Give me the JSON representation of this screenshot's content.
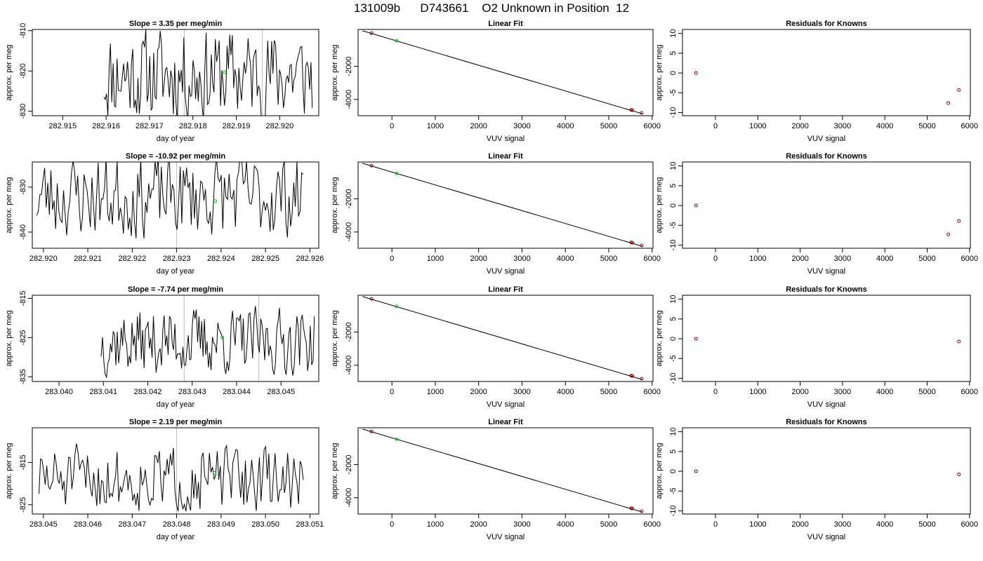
{
  "page_title": "131009b      D743661    O2 Unknown in Position  12",
  "chart_data": [
    {
      "type": "line",
      "panel": "trace-1",
      "title": "Slope =  3.35  per meg/min",
      "xlabel": "day of year",
      "ylabel": "approx. per meg",
      "xlim": [
        282.9143,
        282.9209
      ],
      "ylim": [
        -831.1,
        -809.7
      ],
      "xticks": [
        "282.915",
        "282.916",
        "282.917",
        "282.918",
        "282.919",
        "282.920"
      ],
      "xtick_values": [
        282.915,
        282.916,
        282.917,
        282.918,
        282.919,
        282.92
      ],
      "yticks": [
        "-810",
        "-820",
        "-830"
      ],
      "ytick_values": [
        -810,
        -820,
        -830
      ],
      "trace_x_range": [
        282.91595,
        282.92075
      ],
      "trace_center": -821,
      "trace_amplitude": 15,
      "trace_points": 160,
      "trace_seed": 11,
      "vlines": [
        282.9178,
        282.9196
      ],
      "highlight_point": {
        "x": 282.91873,
        "y": -820.3
      }
    },
    {
      "type": "line",
      "panel": "trace-2",
      "title": "Slope =  -10.92  per meg/min",
      "xlabel": "day of year",
      "ylabel": "approx. per meg",
      "xlim": [
        282.91975,
        282.9262
      ],
      "ylim": [
        -843.6,
        -824.4
      ],
      "xticks": [
        "282.920",
        "282.921",
        "282.922",
        "282.923",
        "282.924",
        "282.925",
        "282.926"
      ],
      "xtick_values": [
        282.92,
        282.921,
        282.922,
        282.923,
        282.924,
        282.925,
        282.926
      ],
      "yticks": [
        "-830",
        "-840"
      ],
      "ytick_values": [
        -830,
        -840
      ],
      "trace_x_range": [
        282.91985,
        282.92585
      ],
      "trace_center": -832,
      "trace_amplitude": 12,
      "trace_points": 170,
      "trace_seed": 23,
      "vlines": [
        282.923
      ],
      "highlight_point": {
        "x": 282.92387,
        "y": -833.1
      }
    },
    {
      "type": "line",
      "panel": "trace-3",
      "title": "Slope =  -7.74  per meg/min",
      "xlabel": "day of year",
      "ylabel": "approx. per meg",
      "xlim": [
        283.0394,
        283.04585
      ],
      "ylim": [
        -836.2,
        -814.2
      ],
      "xticks": [
        "283.040",
        "283.041",
        "283.042",
        "283.043",
        "283.044",
        "283.045"
      ],
      "xtick_values": [
        283.04,
        283.041,
        283.042,
        283.043,
        283.044,
        283.045
      ],
      "yticks": [
        "-815",
        "-825",
        "-835"
      ],
      "ytick_values": [
        -815,
        -825,
        -835
      ],
      "trace_x_range": [
        283.04095,
        283.04575
      ],
      "trace_center": -826,
      "trace_amplitude": 11,
      "trace_points": 160,
      "trace_seed": 37,
      "vlines": [
        283.04282,
        283.0445
      ],
      "highlight_point": {
        "x": 283.04368,
        "y": -825.0
      }
    },
    {
      "type": "line",
      "panel": "trace-4",
      "title": "Slope =  2.19  per meg/min",
      "xlabel": "day of year",
      "ylabel": "approx. per meg",
      "xlim": [
        283.04475,
        283.0512
      ],
      "ylim": [
        -827.2,
        -806.8
      ],
      "xticks": [
        "283.045",
        "283.046",
        "283.047",
        "283.048",
        "283.049",
        "283.050",
        "283.051"
      ],
      "xtick_values": [
        283.045,
        283.046,
        283.047,
        283.048,
        283.049,
        283.05,
        283.051
      ],
      "yticks": [
        "-815",
        "-825"
      ],
      "ytick_values": [
        -815,
        -825
      ],
      "trace_x_range": [
        283.0449,
        283.05085
      ],
      "trace_center": -819,
      "trace_amplitude": 10,
      "trace_points": 170,
      "trace_seed": 51,
      "vlines": [
        283.048
      ],
      "highlight_point": {
        "x": 283.04885,
        "y": -817.5
      }
    },
    {
      "type": "scatter",
      "panel": "fit-1",
      "title": "Linear Fit",
      "xlabel": "VUV signal",
      "ylabel": "approx. per meg",
      "xlim": [
        -780,
        6020
      ],
      "ylim": [
        -4980,
        220
      ],
      "xticks": [
        "0",
        "1000",
        "2000",
        "3000",
        "4000",
        "5000",
        "6000"
      ],
      "xtick_values": [
        0,
        1000,
        2000,
        3000,
        4000,
        5000,
        6000
      ],
      "yticks": [
        "-2000",
        "-4000"
      ],
      "ytick_values": [
        -2000,
        -4000
      ],
      "fit_line": {
        "x": [
          -680,
          5770
        ],
        "y": [
          140,
          -4860
        ]
      },
      "knowns": [
        {
          "x": -470,
          "y": -2
        },
        {
          "x": 5520,
          "y": -4630
        },
        {
          "x": 5540,
          "y": -4645
        },
        {
          "x": 5760,
          "y": -4810
        }
      ],
      "unknowns": [
        {
          "x": 110,
          "y": -457
        }
      ]
    },
    {
      "type": "scatter",
      "panel": "fit-2",
      "title": "Linear Fit",
      "xlabel": "VUV signal",
      "ylabel": "approx. per meg",
      "xlim": [
        -780,
        6020
      ],
      "ylim": [
        -4980,
        220
      ],
      "xticks": [
        "0",
        "1000",
        "2000",
        "3000",
        "4000",
        "5000",
        "6000"
      ],
      "xtick_values": [
        0,
        1000,
        2000,
        3000,
        4000,
        5000,
        6000
      ],
      "yticks": [
        "-2000",
        "-4000"
      ],
      "ytick_values": [
        -2000,
        -4000
      ],
      "fit_line": {
        "x": [
          -680,
          5770
        ],
        "y": [
          140,
          -4860
        ]
      },
      "knowns": [
        {
          "x": -470,
          "y": -2
        },
        {
          "x": 5520,
          "y": -4630
        },
        {
          "x": 5540,
          "y": -4645
        },
        {
          "x": 5760,
          "y": -4810
        }
      ],
      "unknowns": [
        {
          "x": 110,
          "y": -469
        }
      ]
    },
    {
      "type": "scatter",
      "panel": "fit-3",
      "title": "Linear Fit",
      "xlabel": "VUV signal",
      "ylabel": "approx. per meg",
      "xlim": [
        -780,
        6020
      ],
      "ylim": [
        -4980,
        220
      ],
      "xticks": [
        "0",
        "1000",
        "2000",
        "3000",
        "4000",
        "5000",
        "6000"
      ],
      "xtick_values": [
        0,
        1000,
        2000,
        3000,
        4000,
        5000,
        6000
      ],
      "yticks": [
        "-2000",
        "-4000"
      ],
      "ytick_values": [
        -2000,
        -4000
      ],
      "fit_line": {
        "x": [
          -680,
          5770
        ],
        "y": [
          140,
          -4860
        ]
      },
      "knowns": [
        {
          "x": -470,
          "y": -2
        },
        {
          "x": 5520,
          "y": -4630
        },
        {
          "x": 5540,
          "y": -4645
        },
        {
          "x": 5760,
          "y": -4810
        }
      ],
      "unknowns": [
        {
          "x": 110,
          "y": -453
        }
      ]
    },
    {
      "type": "scatter",
      "panel": "fit-4",
      "title": "Linear Fit",
      "xlabel": "VUV signal",
      "ylabel": "approx. per meg",
      "xlim": [
        -780,
        6020
      ],
      "ylim": [
        -4980,
        220
      ],
      "xticks": [
        "0",
        "1000",
        "2000",
        "3000",
        "4000",
        "5000",
        "6000"
      ],
      "xtick_values": [
        0,
        1000,
        2000,
        3000,
        4000,
        5000,
        6000
      ],
      "yticks": [
        "-2000",
        "-4000"
      ],
      "ytick_values": [
        -2000,
        -4000
      ],
      "fit_line": {
        "x": [
          -680,
          5770
        ],
        "y": [
          140,
          -4860
        ]
      },
      "knowns": [
        {
          "x": -470,
          "y": -2
        },
        {
          "x": 5520,
          "y": -4630
        },
        {
          "x": 5540,
          "y": -4645
        },
        {
          "x": 5760,
          "y": -4810
        }
      ],
      "unknowns": [
        {
          "x": 110,
          "y": -472
        }
      ]
    },
    {
      "type": "scatter",
      "panel": "resid-1",
      "title": "Residuals for Knowns",
      "xlabel": "VUV signal",
      "ylabel": "approx. per meg",
      "xlim": [
        -780,
        6020
      ],
      "ylim": [
        -10.8,
        11
      ],
      "xticks": [
        "0",
        "1000",
        "2000",
        "3000",
        "4000",
        "5000",
        "6000"
      ],
      "xtick_values": [
        0,
        1000,
        2000,
        3000,
        4000,
        5000,
        6000
      ],
      "yticks": [
        "10",
        "5",
        "0",
        "-5",
        "-10"
      ],
      "ytick_values": [
        10,
        5,
        0,
        -5,
        -10
      ],
      "points": [
        {
          "x": -460,
          "y": 0
        },
        {
          "x": 5500,
          "y": -7.6
        },
        {
          "x": 5750,
          "y": -4.3
        }
      ]
    },
    {
      "type": "scatter",
      "panel": "resid-2",
      "title": "Residuals for Knowns",
      "xlabel": "VUV signal",
      "ylabel": "approx. per meg",
      "xlim": [
        -780,
        6020
      ],
      "ylim": [
        -10.8,
        11
      ],
      "xticks": [
        "0",
        "1000",
        "2000",
        "3000",
        "4000",
        "5000",
        "6000"
      ],
      "xtick_values": [
        0,
        1000,
        2000,
        3000,
        4000,
        5000,
        6000
      ],
      "yticks": [
        "10",
        "5",
        "0",
        "-5",
        "-10"
      ],
      "ytick_values": [
        10,
        5,
        0,
        -5,
        -10
      ],
      "points": [
        {
          "x": -460,
          "y": 0
        },
        {
          "x": 5500,
          "y": -7.3
        },
        {
          "x": 5750,
          "y": -3.9
        }
      ]
    },
    {
      "type": "scatter",
      "panel": "resid-3",
      "title": "Residuals for Knowns",
      "xlabel": "VUV signal",
      "ylabel": "approx. per meg",
      "xlim": [
        -780,
        6020
      ],
      "ylim": [
        -10.8,
        11
      ],
      "xticks": [
        "0",
        "1000",
        "2000",
        "3000",
        "4000",
        "5000",
        "6000"
      ],
      "xtick_values": [
        0,
        1000,
        2000,
        3000,
        4000,
        5000,
        6000
      ],
      "yticks": [
        "10",
        "5",
        "0",
        "-5",
        "-10"
      ],
      "ytick_values": [
        10,
        5,
        0,
        -5,
        -10
      ],
      "points": [
        {
          "x": -460,
          "y": 0
        },
        {
          "x": 5750,
          "y": -0.7
        }
      ]
    },
    {
      "type": "scatter",
      "panel": "resid-4",
      "title": "Residuals for Knowns",
      "xlabel": "VUV signal",
      "ylabel": "approx. per meg",
      "xlim": [
        -780,
        6020
      ],
      "ylim": [
        -10.8,
        11
      ],
      "xticks": [
        "0",
        "1000",
        "2000",
        "3000",
        "4000",
        "5000",
        "6000"
      ],
      "xtick_values": [
        0,
        1000,
        2000,
        3000,
        4000,
        5000,
        6000
      ],
      "yticks": [
        "10",
        "5",
        "0",
        "-5",
        "-10"
      ],
      "ytick_values": [
        10,
        5,
        0,
        -5,
        -10
      ],
      "points": [
        {
          "x": -460,
          "y": 0
        },
        {
          "x": 5750,
          "y": -0.8
        }
      ]
    }
  ],
  "colors": {
    "trace": "#000000",
    "fit_line": "#000000",
    "known": "#8b0000",
    "unknown": "#00cc00",
    "vline": "#bebebe"
  }
}
